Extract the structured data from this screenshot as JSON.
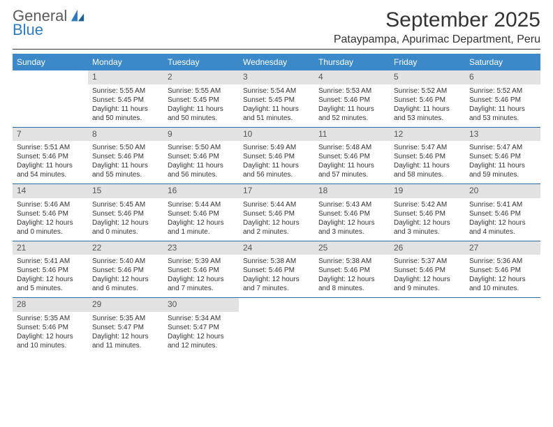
{
  "brand": {
    "line1": "General",
    "line2": "Blue"
  },
  "title": "September 2025",
  "location": "Pataypampa, Apurimac Department, Peru",
  "colors": {
    "header_bg": "#3b89c9",
    "header_text": "#ffffff",
    "daynum_bg": "#e2e2e2",
    "daynum_text": "#555555",
    "body_text": "#333333",
    "rule": "#2a6ca8",
    "logo_gray": "#5b5b5b",
    "logo_blue": "#2f7bbf",
    "page_bg": "#ffffff"
  },
  "typography": {
    "title_fontsize": 30,
    "location_fontsize": 16,
    "header_fontsize": 12,
    "daynum_fontsize": 12,
    "body_fontsize": 10
  },
  "dayNames": [
    "Sunday",
    "Monday",
    "Tuesday",
    "Wednesday",
    "Thursday",
    "Friday",
    "Saturday"
  ],
  "weeks": [
    [
      null,
      {
        "n": "1",
        "sr": "Sunrise: 5:55 AM",
        "ss": "Sunset: 5:45 PM",
        "dl": "Daylight: 11 hours and 50 minutes."
      },
      {
        "n": "2",
        "sr": "Sunrise: 5:55 AM",
        "ss": "Sunset: 5:45 PM",
        "dl": "Daylight: 11 hours and 50 minutes."
      },
      {
        "n": "3",
        "sr": "Sunrise: 5:54 AM",
        "ss": "Sunset: 5:45 PM",
        "dl": "Daylight: 11 hours and 51 minutes."
      },
      {
        "n": "4",
        "sr": "Sunrise: 5:53 AM",
        "ss": "Sunset: 5:46 PM",
        "dl": "Daylight: 11 hours and 52 minutes."
      },
      {
        "n": "5",
        "sr": "Sunrise: 5:52 AM",
        "ss": "Sunset: 5:46 PM",
        "dl": "Daylight: 11 hours and 53 minutes."
      },
      {
        "n": "6",
        "sr": "Sunrise: 5:52 AM",
        "ss": "Sunset: 5:46 PM",
        "dl": "Daylight: 11 hours and 53 minutes."
      }
    ],
    [
      {
        "n": "7",
        "sr": "Sunrise: 5:51 AM",
        "ss": "Sunset: 5:46 PM",
        "dl": "Daylight: 11 hours and 54 minutes."
      },
      {
        "n": "8",
        "sr": "Sunrise: 5:50 AM",
        "ss": "Sunset: 5:46 PM",
        "dl": "Daylight: 11 hours and 55 minutes."
      },
      {
        "n": "9",
        "sr": "Sunrise: 5:50 AM",
        "ss": "Sunset: 5:46 PM",
        "dl": "Daylight: 11 hours and 56 minutes."
      },
      {
        "n": "10",
        "sr": "Sunrise: 5:49 AM",
        "ss": "Sunset: 5:46 PM",
        "dl": "Daylight: 11 hours and 56 minutes."
      },
      {
        "n": "11",
        "sr": "Sunrise: 5:48 AM",
        "ss": "Sunset: 5:46 PM",
        "dl": "Daylight: 11 hours and 57 minutes."
      },
      {
        "n": "12",
        "sr": "Sunrise: 5:47 AM",
        "ss": "Sunset: 5:46 PM",
        "dl": "Daylight: 11 hours and 58 minutes."
      },
      {
        "n": "13",
        "sr": "Sunrise: 5:47 AM",
        "ss": "Sunset: 5:46 PM",
        "dl": "Daylight: 11 hours and 59 minutes."
      }
    ],
    [
      {
        "n": "14",
        "sr": "Sunrise: 5:46 AM",
        "ss": "Sunset: 5:46 PM",
        "dl": "Daylight: 12 hours and 0 minutes."
      },
      {
        "n": "15",
        "sr": "Sunrise: 5:45 AM",
        "ss": "Sunset: 5:46 PM",
        "dl": "Daylight: 12 hours and 0 minutes."
      },
      {
        "n": "16",
        "sr": "Sunrise: 5:44 AM",
        "ss": "Sunset: 5:46 PM",
        "dl": "Daylight: 12 hours and 1 minute."
      },
      {
        "n": "17",
        "sr": "Sunrise: 5:44 AM",
        "ss": "Sunset: 5:46 PM",
        "dl": "Daylight: 12 hours and 2 minutes."
      },
      {
        "n": "18",
        "sr": "Sunrise: 5:43 AM",
        "ss": "Sunset: 5:46 PM",
        "dl": "Daylight: 12 hours and 3 minutes."
      },
      {
        "n": "19",
        "sr": "Sunrise: 5:42 AM",
        "ss": "Sunset: 5:46 PM",
        "dl": "Daylight: 12 hours and 3 minutes."
      },
      {
        "n": "20",
        "sr": "Sunrise: 5:41 AM",
        "ss": "Sunset: 5:46 PM",
        "dl": "Daylight: 12 hours and 4 minutes."
      }
    ],
    [
      {
        "n": "21",
        "sr": "Sunrise: 5:41 AM",
        "ss": "Sunset: 5:46 PM",
        "dl": "Daylight: 12 hours and 5 minutes."
      },
      {
        "n": "22",
        "sr": "Sunrise: 5:40 AM",
        "ss": "Sunset: 5:46 PM",
        "dl": "Daylight: 12 hours and 6 minutes."
      },
      {
        "n": "23",
        "sr": "Sunrise: 5:39 AM",
        "ss": "Sunset: 5:46 PM",
        "dl": "Daylight: 12 hours and 7 minutes."
      },
      {
        "n": "24",
        "sr": "Sunrise: 5:38 AM",
        "ss": "Sunset: 5:46 PM",
        "dl": "Daylight: 12 hours and 7 minutes."
      },
      {
        "n": "25",
        "sr": "Sunrise: 5:38 AM",
        "ss": "Sunset: 5:46 PM",
        "dl": "Daylight: 12 hours and 8 minutes."
      },
      {
        "n": "26",
        "sr": "Sunrise: 5:37 AM",
        "ss": "Sunset: 5:46 PM",
        "dl": "Daylight: 12 hours and 9 minutes."
      },
      {
        "n": "27",
        "sr": "Sunrise: 5:36 AM",
        "ss": "Sunset: 5:46 PM",
        "dl": "Daylight: 12 hours and 10 minutes."
      }
    ],
    [
      {
        "n": "28",
        "sr": "Sunrise: 5:35 AM",
        "ss": "Sunset: 5:46 PM",
        "dl": "Daylight: 12 hours and 10 minutes."
      },
      {
        "n": "29",
        "sr": "Sunrise: 5:35 AM",
        "ss": "Sunset: 5:47 PM",
        "dl": "Daylight: 12 hours and 11 minutes."
      },
      {
        "n": "30",
        "sr": "Sunrise: 5:34 AM",
        "ss": "Sunset: 5:47 PM",
        "dl": "Daylight: 12 hours and 12 minutes."
      },
      null,
      null,
      null,
      null
    ]
  ]
}
